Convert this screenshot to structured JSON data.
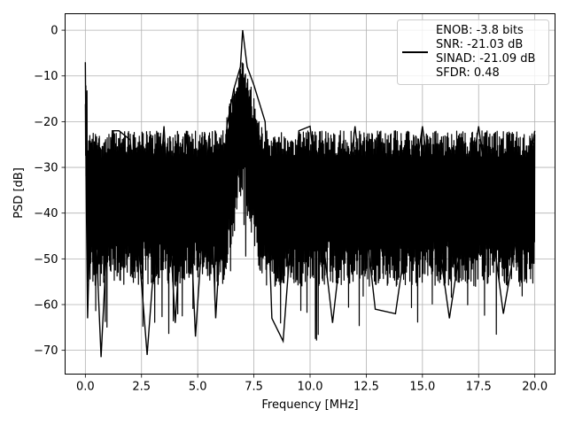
{
  "chart_data": {
    "type": "line",
    "title": "",
    "xlabel": "Frequency [MHz]",
    "ylabel": "PSD [dB]",
    "xlim": [
      -0.9,
      20.9
    ],
    "ylim": [
      -75.2,
      3.6
    ],
    "grid": true,
    "legend_position": "top-right",
    "x_ticks": [
      0.0,
      2.5,
      5.0,
      7.5,
      10.0,
      12.5,
      15.0,
      17.5,
      20.0
    ],
    "x_tick_labels": [
      "0.0",
      "2.5",
      "5.0",
      "7.5",
      "10.0",
      "12.5",
      "15.0",
      "17.5",
      "20.0"
    ],
    "y_ticks": [
      0,
      -10,
      -20,
      -30,
      -40,
      -50,
      -60,
      -70
    ],
    "y_tick_labels": [
      "0",
      "−10",
      "−20",
      "−30",
      "−40",
      "−50",
      "−60",
      "−70"
    ],
    "legend_entries": [
      "ENOB: -3.8 bits",
      "SNR: -21.03 dB",
      "SINAD: -21.09 dB",
      "SFDR: 0.48"
    ],
    "series": [
      {
        "color": "#000000",
        "description_points": [
          [
            0.0,
            -7
          ],
          [
            0.05,
            -40
          ],
          [
            0.1,
            -63
          ],
          [
            0.3,
            -25
          ],
          [
            0.7,
            -71.5
          ],
          [
            1.2,
            -22
          ],
          [
            1.5,
            -22
          ],
          [
            2.0,
            -24
          ],
          [
            2.75,
            -71
          ],
          [
            3.5,
            -21
          ],
          [
            4.0,
            -64
          ],
          [
            4.5,
            -22
          ],
          [
            4.9,
            -67
          ],
          [
            5.5,
            -23
          ],
          [
            5.8,
            -63
          ],
          [
            6.3,
            -21
          ],
          [
            6.6,
            -13
          ],
          [
            6.9,
            -8
          ],
          [
            7.0,
            0
          ],
          [
            7.2,
            -8
          ],
          [
            7.5,
            -12
          ],
          [
            8.0,
            -20
          ],
          [
            8.3,
            -63
          ],
          [
            8.8,
            -68
          ],
          [
            9.5,
            -22
          ],
          [
            10.0,
            -21
          ],
          [
            11.0,
            -64
          ],
          [
            12.0,
            -21
          ],
          [
            12.9,
            -61
          ],
          [
            13.8,
            -62
          ],
          [
            15.0,
            -21
          ],
          [
            16.2,
            -63
          ],
          [
            17.5,
            -21
          ],
          [
            18.6,
            -62
          ],
          [
            20.0,
            -22
          ]
        ]
      }
    ],
    "noise_floor_db": [
      -56,
      -22
    ],
    "peak_frequency_mhz": 7.0,
    "peak_db": 0
  }
}
